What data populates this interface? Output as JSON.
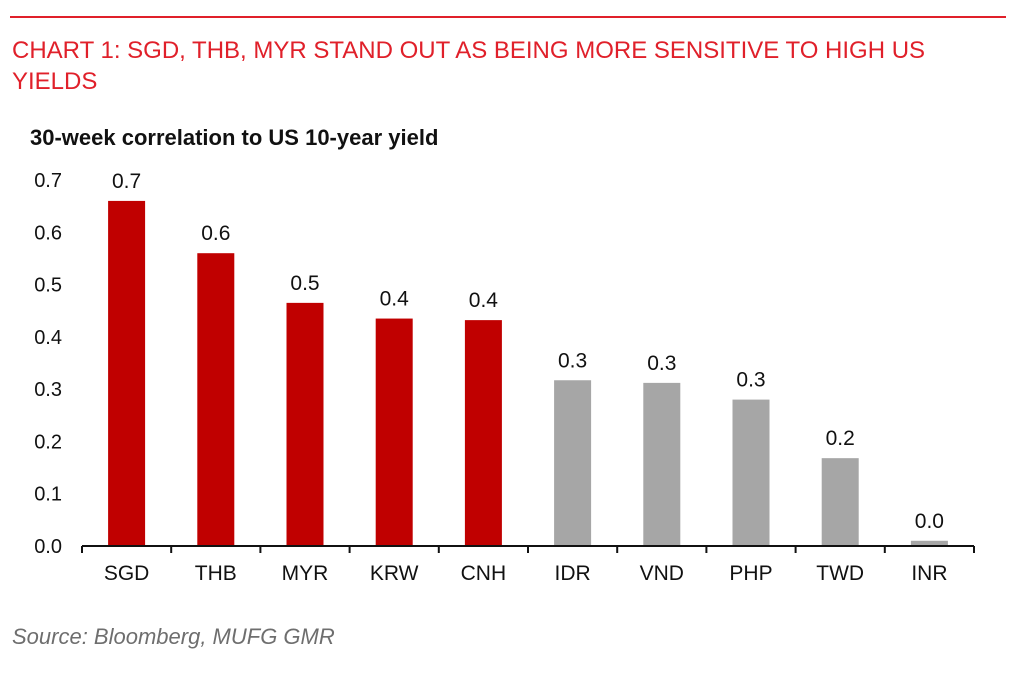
{
  "heading": "CHART 1: SGD, THB, MYR STAND OUT AS BEING MORE SENSITIVE TO HIGH US YIELDS",
  "source": "Source: Bloomberg, MUFG GMR",
  "chart_data": {
    "type": "bar",
    "title": "30-week correlation to US 10-year yield",
    "xlabel": "",
    "ylabel": "",
    "ylim": [
      0,
      0.7
    ],
    "yticks": [
      "0.0",
      "0.1",
      "0.2",
      "0.3",
      "0.4",
      "0.5",
      "0.6",
      "0.7"
    ],
    "grid": false,
    "categories": [
      "SGD",
      "THB",
      "MYR",
      "KRW",
      "CNH",
      "IDR",
      "VND",
      "PHP",
      "TWD",
      "INR"
    ],
    "values": [
      0.66,
      0.56,
      0.465,
      0.435,
      0.432,
      0.317,
      0.312,
      0.28,
      0.168,
      0.01
    ],
    "data_labels": [
      "0.7",
      "0.6",
      "0.5",
      "0.4",
      "0.4",
      "0.3",
      "0.3",
      "0.3",
      "0.2",
      "0.0"
    ],
    "colors": [
      "#c00000",
      "#c00000",
      "#c00000",
      "#c00000",
      "#c00000",
      "#a6a6a6",
      "#a6a6a6",
      "#a6a6a6",
      "#a6a6a6",
      "#a6a6a6"
    ],
    "accent_color": "#e0202a"
  }
}
